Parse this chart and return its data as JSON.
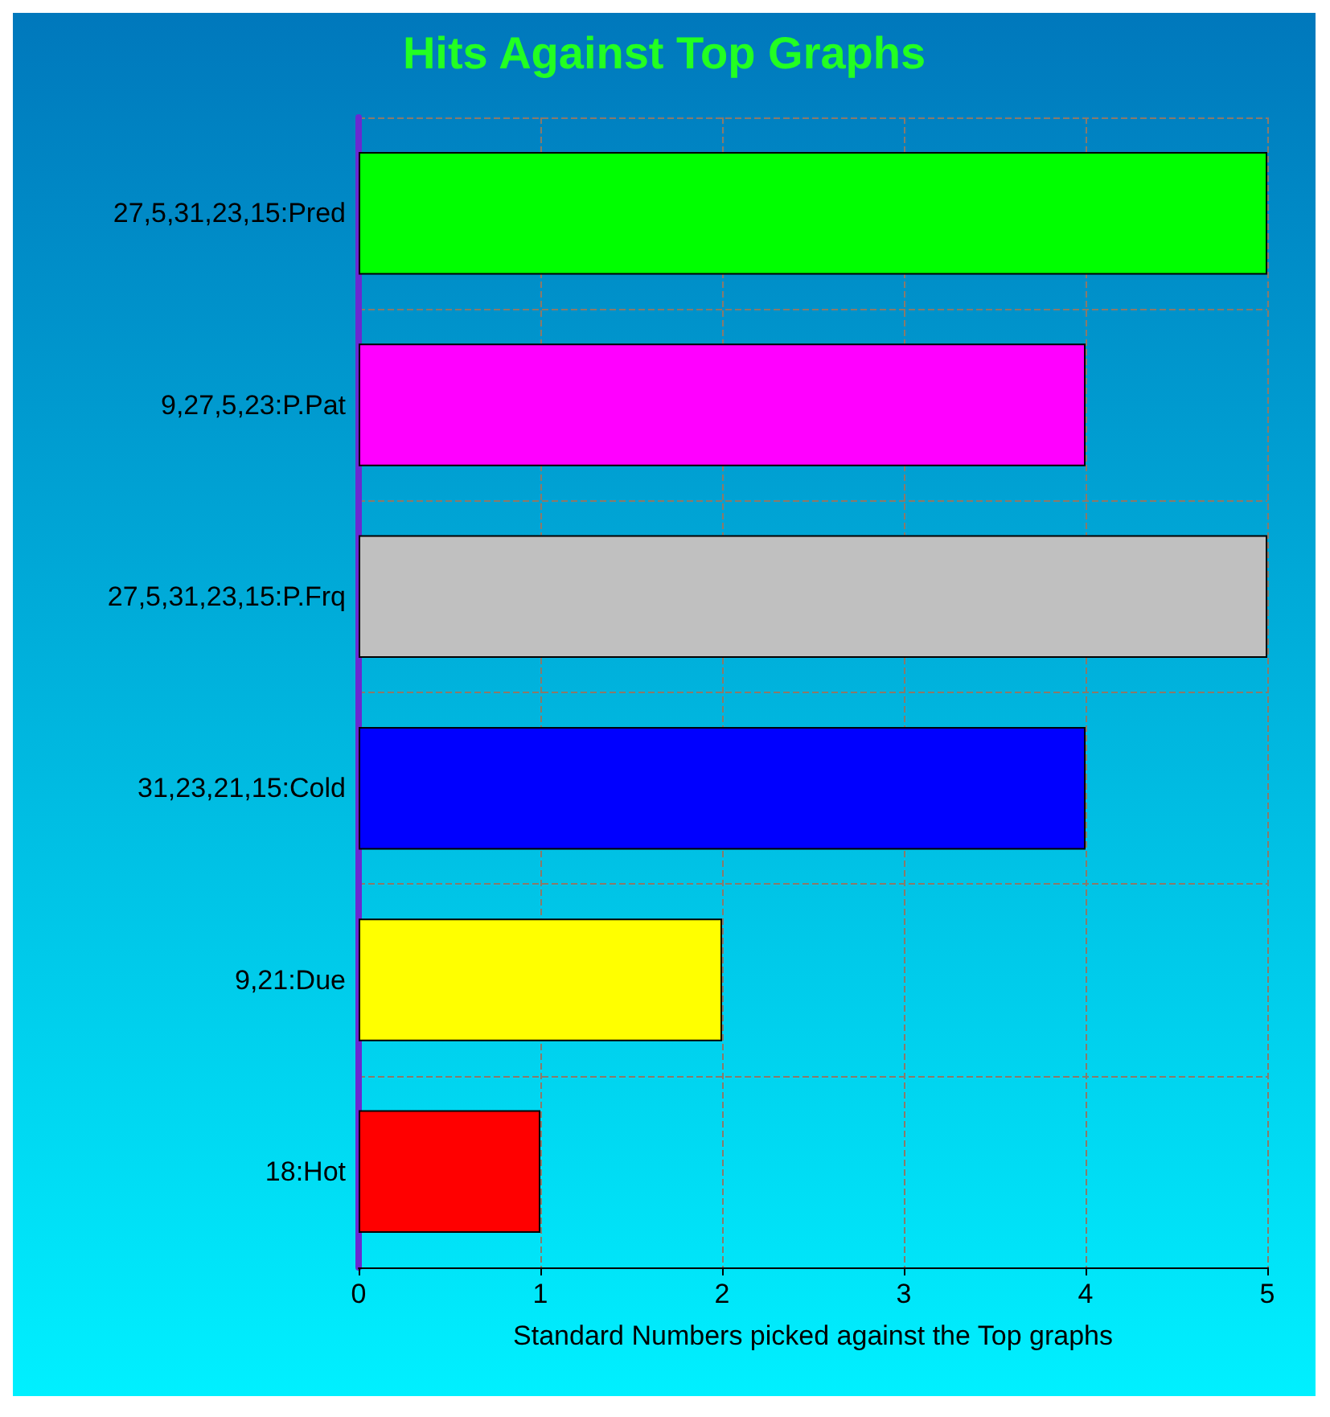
{
  "chart_data": {
    "type": "bar",
    "orientation": "horizontal",
    "title": "Hits Against Top Graphs",
    "xlabel": "Standard Numbers picked against the Top graphs",
    "categories": [
      "27,5,31,23,15:Pred",
      "9,27,5,23:P.Pat",
      "27,5,31,23,15:P.Frq",
      "31,23,21,15:Cold",
      "9,21:Due",
      "18:Hot"
    ],
    "values": [
      5,
      4,
      5,
      4,
      2,
      1
    ],
    "colors": [
      "#00ff00",
      "#ff00ff",
      "#c0c0c0",
      "#0000ff",
      "#ffff00",
      "#ff0000"
    ],
    "xlim": [
      0,
      5
    ],
    "xticks": [
      0,
      1,
      2,
      3,
      4,
      5
    ],
    "grid": true
  }
}
